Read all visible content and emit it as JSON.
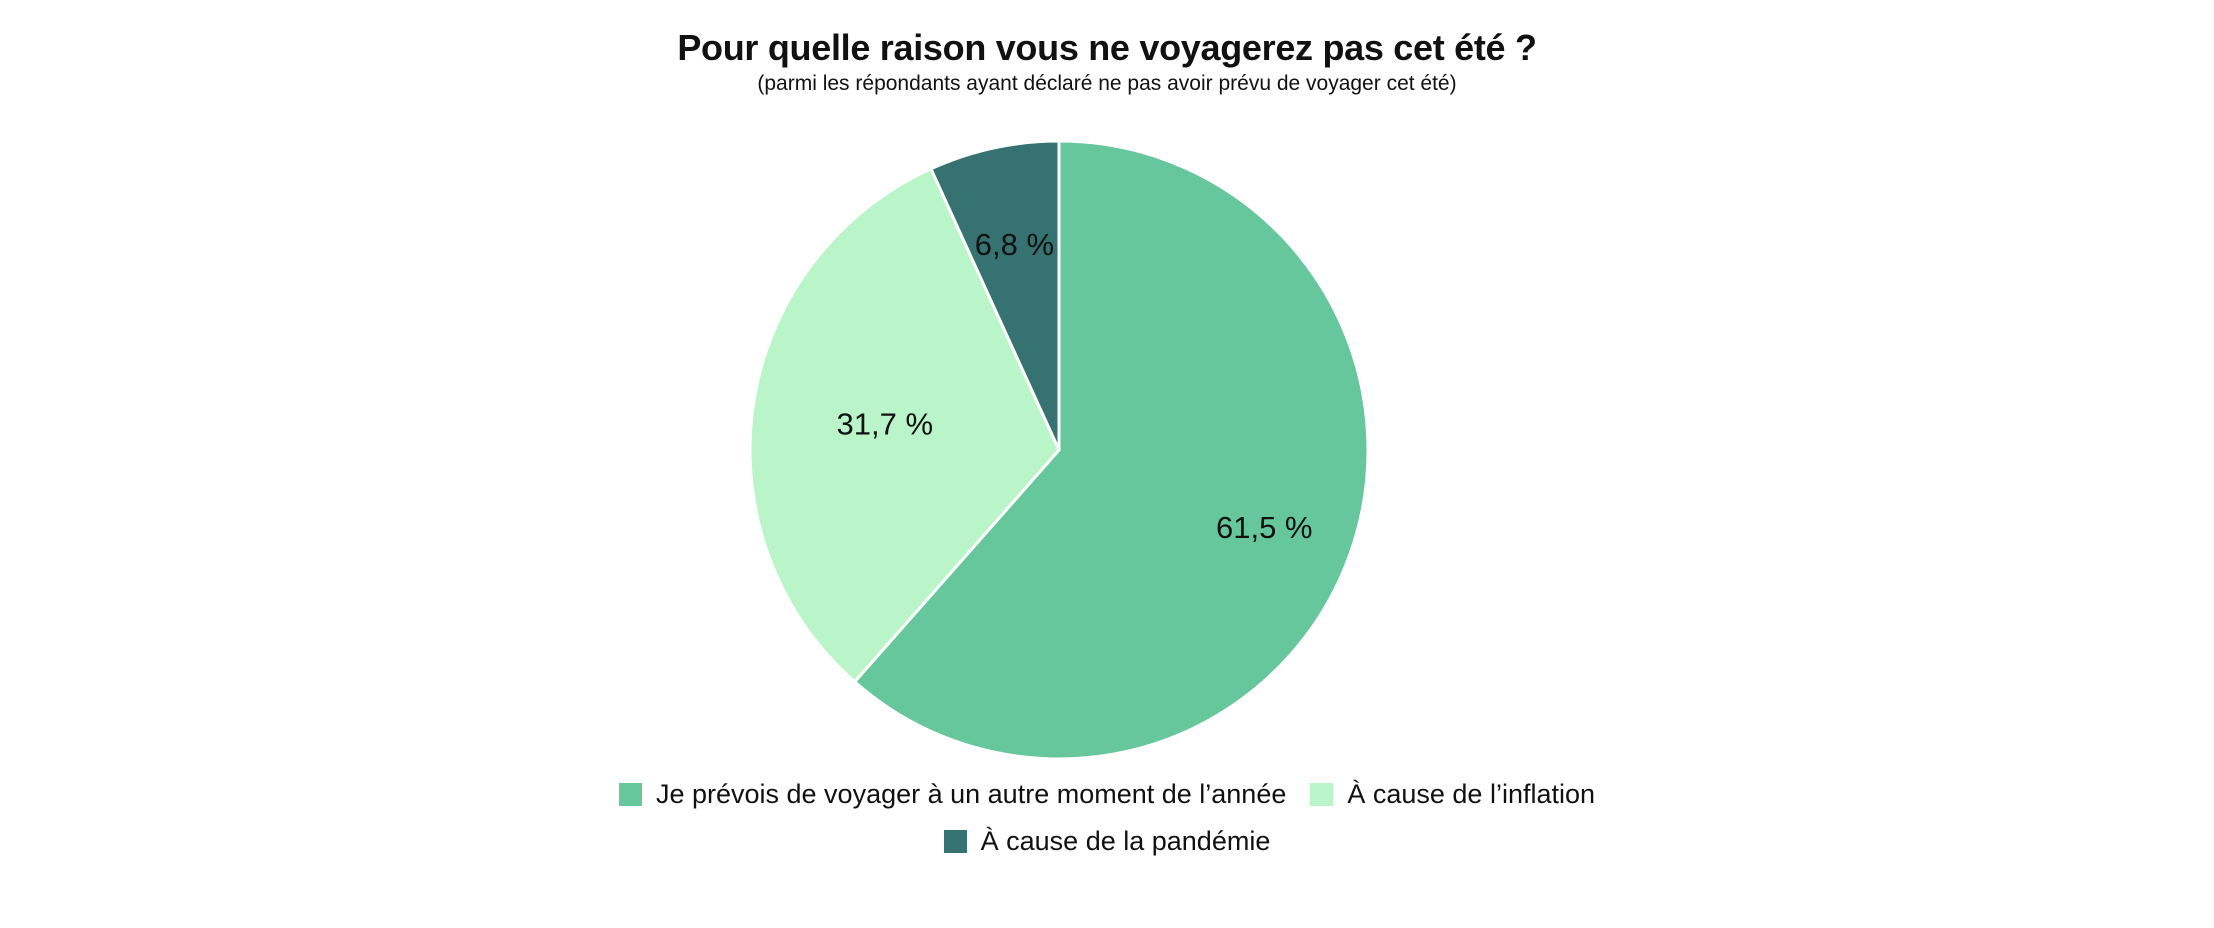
{
  "chart_data": {
    "type": "pie",
    "title": "Pour quelle raison vous ne voyagerez pas cet été ?",
    "subtitle": "(parmi les répondants ayant déclaré ne pas avoir prévu de voyager cet été)",
    "slices": [
      {
        "label": "Je prévois de voyager à un autre moment de l’année",
        "value": 61.5,
        "value_label": "61,5 %",
        "color": "#66c69c"
      },
      {
        "label": "À cause de l’inflation",
        "value": 31.7,
        "value_label": "31,7 %",
        "color": "#b9f5c9"
      },
      {
        "label": "À cause de la pandémie",
        "value": 6.8,
        "value_label": "6,8 %",
        "color": "#357271"
      }
    ],
    "start_angle": "12 o'clock",
    "direction": "clockwise",
    "legend_position": "bottom"
  }
}
